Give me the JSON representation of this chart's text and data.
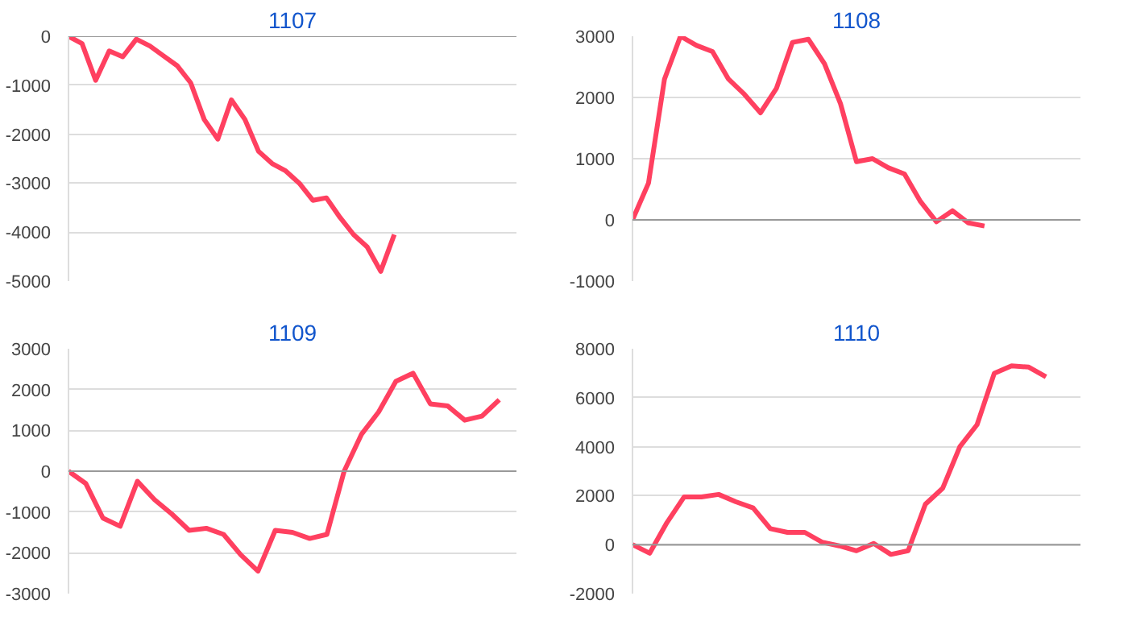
{
  "chart_data": [
    {
      "type": "line",
      "title": "1107",
      "categories": [
        null,
        null,
        null,
        null,
        null,
        null,
        null,
        null,
        null,
        null,
        null,
        null,
        null,
        null,
        null,
        null,
        null,
        null,
        null,
        null,
        null,
        null,
        null,
        null,
        null,
        null,
        null,
        null,
        null,
        null,
        null,
        null,
        null,
        null
      ],
      "series": [
        {
          "color": "#ff4060",
          "values": [
            0,
            -150,
            -900,
            -300,
            -420,
            -60,
            -200,
            -400,
            -600,
            -950,
            -1700,
            -2100,
            -1300,
            -1700,
            -2350,
            -2600,
            -2750,
            -3000,
            -3350,
            -3300,
            -3700,
            -4050,
            -4300,
            -4800,
            -4050,
            null,
            null,
            null,
            null,
            null,
            null,
            null,
            null,
            null
          ]
        }
      ],
      "ylim": [
        -5000,
        0
      ],
      "yticks": [
        -5000,
        -4000,
        -3000,
        -2000,
        -1000,
        0
      ],
      "grid": "y",
      "tick_labels": "y"
    },
    {
      "type": "line",
      "title": "1108",
      "categories": [
        null,
        null,
        null,
        null,
        null,
        null,
        null,
        null,
        null,
        null,
        null,
        null,
        null,
        null,
        null,
        null,
        null,
        null,
        null,
        null,
        null,
        null,
        null,
        null,
        null,
        null,
        null,
        null,
        null
      ],
      "series": [
        {
          "color": "#ff4060",
          "values": [
            0,
            600,
            2300,
            3000,
            2850,
            2750,
            2300,
            2050,
            1750,
            2150,
            2900,
            2950,
            2550,
            1900,
            950,
            1000,
            850,
            750,
            300,
            -30,
            150,
            -50,
            -100,
            null,
            null,
            null,
            null,
            null,
            null
          ]
        }
      ],
      "ylim": [
        -1000,
        3000
      ],
      "yticks": [
        -1000,
        0,
        1000,
        2000,
        3000
      ],
      "grid": "y",
      "tick_labels": "y"
    },
    {
      "type": "line",
      "title": "1109",
      "categories": [
        null,
        null,
        null,
        null,
        null,
        null,
        null,
        null,
        null,
        null,
        null,
        null,
        null,
        null,
        null,
        null,
        null,
        null,
        null,
        null,
        null,
        null,
        null,
        null,
        null,
        null,
        null
      ],
      "series": [
        {
          "color": "#ff4060",
          "values": [
            0,
            -300,
            -1150,
            -1350,
            -250,
            -700,
            -1050,
            -1450,
            -1400,
            -1550,
            -2050,
            -2450,
            -1450,
            -1500,
            -1650,
            -1550,
            0,
            900,
            1450,
            2200,
            2400,
            1650,
            1600,
            1250,
            1350,
            1750,
            null
          ]
        }
      ],
      "ylim": [
        -3000,
        3000
      ],
      "yticks": [
        -3000,
        -2000,
        -1000,
        0,
        1000,
        2000,
        3000
      ],
      "grid": "y",
      "tick_labels": "y"
    },
    {
      "type": "line",
      "title": "1110",
      "categories": [
        null,
        null,
        null,
        null,
        null,
        null,
        null,
        null,
        null,
        null,
        null,
        null,
        null,
        null,
        null,
        null,
        null,
        null,
        null,
        null,
        null,
        null,
        null,
        null,
        null,
        null,
        null
      ],
      "series": [
        {
          "color": "#ff4060",
          "values": [
            0,
            -350,
            900,
            1950,
            1950,
            2050,
            1750,
            1500,
            650,
            500,
            500,
            100,
            -50,
            -250,
            50,
            -400,
            -250,
            1650,
            2300,
            4000,
            4900,
            7000,
            7300,
            7250,
            6850,
            null,
            null
          ]
        }
      ],
      "ylim": [
        -2000,
        8000
      ],
      "yticks": [
        -2000,
        0,
        2000,
        4000,
        6000,
        8000
      ],
      "grid": "y",
      "tick_labels": "y"
    }
  ]
}
